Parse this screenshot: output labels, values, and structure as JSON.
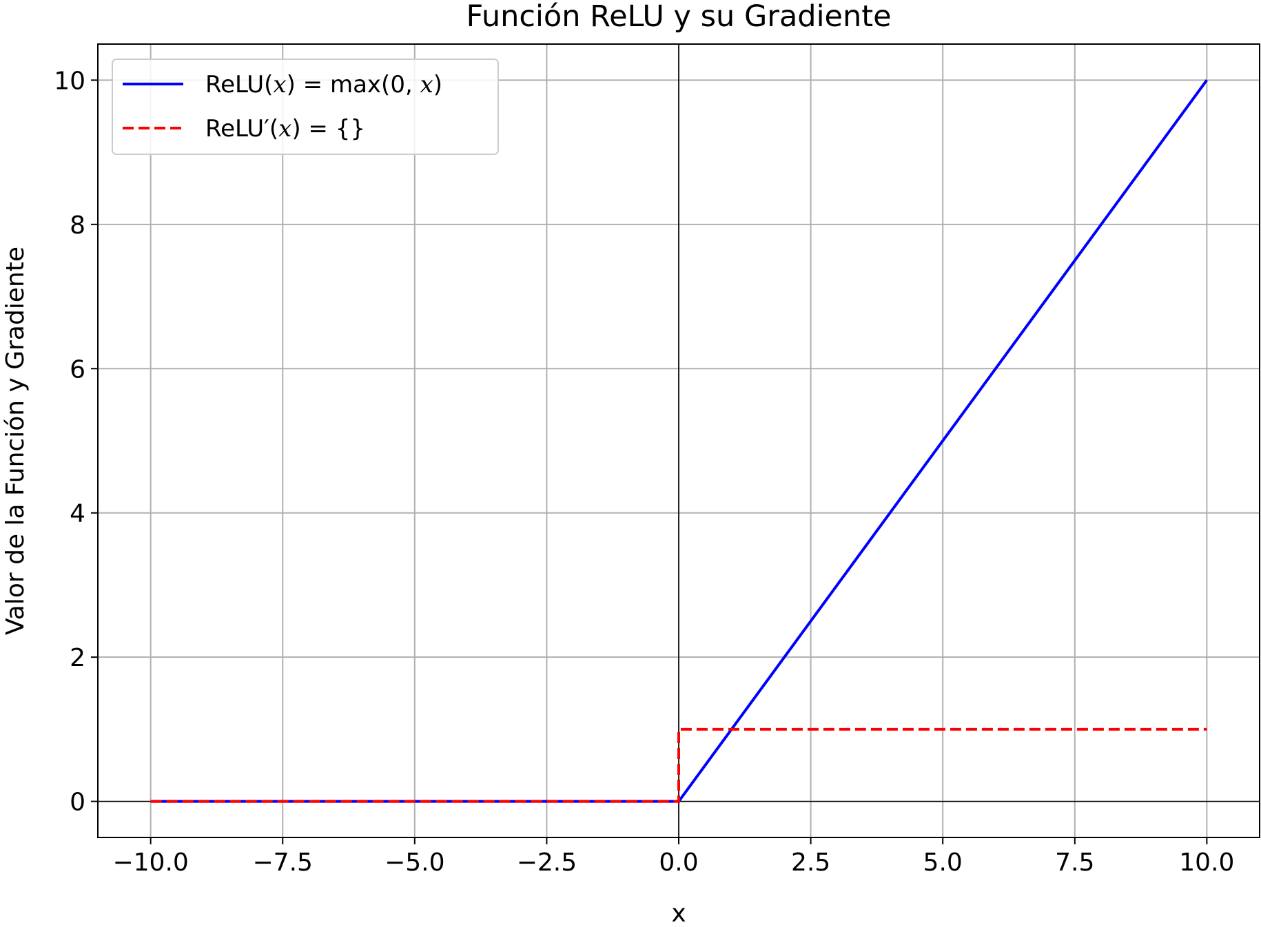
{
  "chart_data": {
    "type": "line",
    "title": "Función ReLU y su Gradiente",
    "xlabel": "x",
    "ylabel": "Valor de la Función y Gradiente",
    "xlim": [
      -11.0,
      11.0
    ],
    "ylim": [
      -0.5,
      10.5
    ],
    "xticks": [
      -10.0,
      -7.5,
      -5.0,
      -2.5,
      0.0,
      2.5,
      5.0,
      7.5,
      10.0
    ],
    "xtick_labels": [
      "−10.0",
      "−7.5",
      "−5.0",
      "−2.5",
      "0.0",
      "2.5",
      "5.0",
      "7.5",
      "10.0"
    ],
    "yticks": [
      0,
      2,
      4,
      6,
      8,
      10
    ],
    "ytick_labels": [
      "0",
      "2",
      "4",
      "6",
      "8",
      "10"
    ],
    "grid": true,
    "reference_lines": {
      "x": 0,
      "y": 0
    },
    "legend_position": "top-left",
    "series": [
      {
        "name": "ReLU(x) = max(0, x)",
        "name_parts": {
          "prefix": "ReLU(",
          "var": "x",
          "suffix": ") = max(0, ",
          "var2": "x",
          "end": ")"
        },
        "color": "#0000ff",
        "style": "solid",
        "x": [
          -10,
          0,
          10
        ],
        "y": [
          0,
          0,
          10
        ]
      },
      {
        "name": "ReLU′(x) = {}",
        "name_parts": {
          "prefix": "ReLU′(",
          "var": "x",
          "suffix": ") = {}"
        },
        "color": "#ff0000",
        "style": "dashed",
        "x": [
          -10,
          0,
          0,
          10
        ],
        "y": [
          0,
          0,
          1,
          1
        ]
      }
    ]
  }
}
